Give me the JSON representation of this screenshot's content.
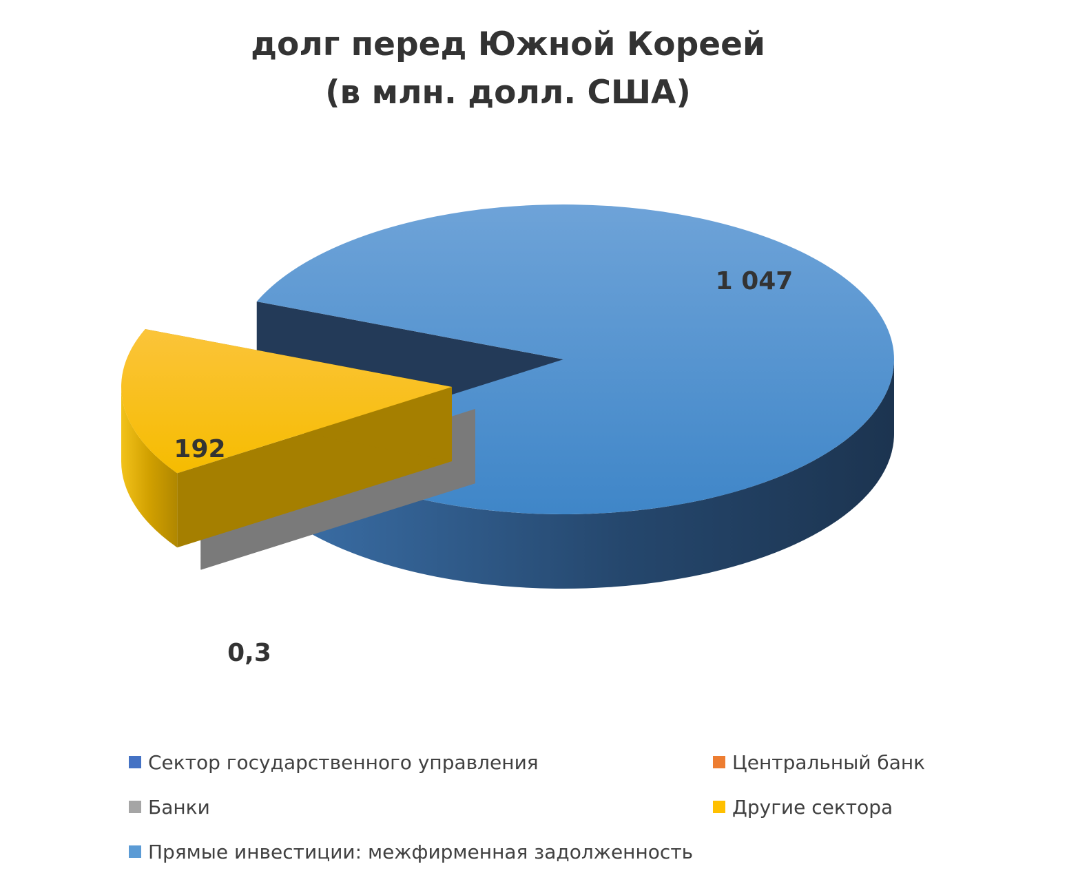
{
  "chart_data": {
    "type": "pie",
    "title": [
      "долг перед Южной Кореей",
      "(в млн. долл. США)"
    ],
    "slices": [
      {
        "name": "Сектор государственного управления",
        "value": null,
        "label": "",
        "color": "#4472C4"
      },
      {
        "name": "Центральный банк",
        "value": null,
        "label": "",
        "color": "#ED7D31"
      },
      {
        "name": "Банки",
        "value": 0.3,
        "label": "0,3",
        "color": "#A5A5A5"
      },
      {
        "name": "Другие сектора",
        "value": 192,
        "label": "192",
        "color": "#FFC000"
      },
      {
        "name": "Прямые инвестиции: межфирменная задолженность",
        "value": 1047,
        "label": "1 047",
        "color": "#5B9BD5"
      }
    ],
    "legend_position": "bottom",
    "style": "3d-exploded"
  }
}
